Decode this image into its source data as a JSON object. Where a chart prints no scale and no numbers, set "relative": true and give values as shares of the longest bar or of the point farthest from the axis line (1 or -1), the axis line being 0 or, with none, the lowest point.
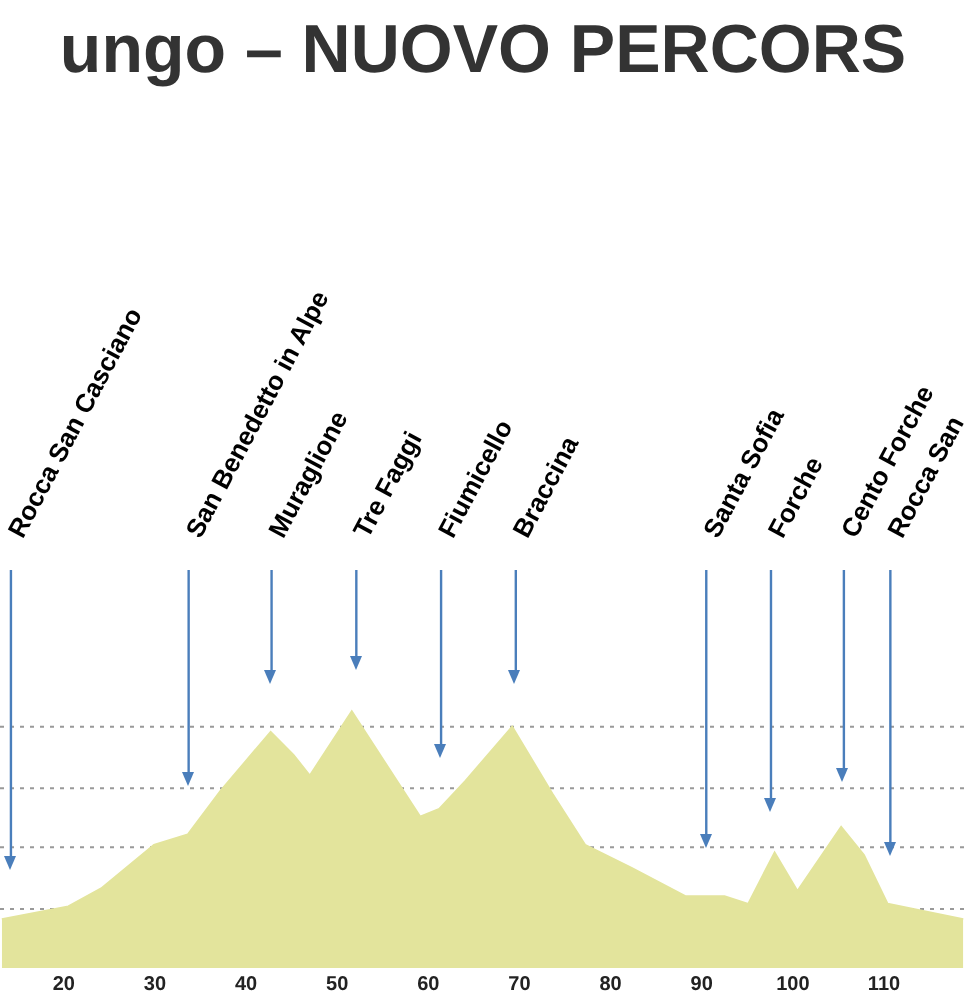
{
  "chart_data": {
    "type": "area",
    "title": "ungo – NUOVO PERCORS",
    "relative": true,
    "color": "#e3e49c",
    "x": [
      13.2,
      20.5,
      24.1,
      29.9,
      33.6,
      37.2,
      42.7,
      45.2,
      47.0,
      51.6,
      59.1,
      61.2,
      64.1,
      69.2,
      73.6,
      77.2,
      82.3,
      88.2,
      92.5,
      95.1,
      98.0,
      100.5,
      105.3,
      107.8,
      110.4,
      118.7
    ],
    "values": [
      0.19,
      0.24,
      0.31,
      0.48,
      0.52,
      0.69,
      0.92,
      0.83,
      0.75,
      1.0,
      0.59,
      0.62,
      0.73,
      0.94,
      0.68,
      0.48,
      0.39,
      0.28,
      0.28,
      0.25,
      0.45,
      0.3,
      0.55,
      0.44,
      0.25,
      0.19
    ],
    "xlim": [
      13,
      119
    ],
    "xticks": [
      20,
      30,
      40,
      50,
      60,
      70,
      80,
      90,
      100,
      110
    ],
    "ref_lines": [
      {
        "axis": "y",
        "value": 0.23,
        "color": "#999999",
        "line_style": "dotted"
      },
      {
        "axis": "y",
        "value": 0.47,
        "color": "#999999",
        "line_style": "dotted"
      },
      {
        "axis": "y",
        "value": 0.7,
        "color": "#999999",
        "line_style": "dotted"
      },
      {
        "axis": "y",
        "value": 0.94,
        "color": "#999999",
        "line_style": "dotted"
      },
      {
        "axis": "x",
        "value": 14.2,
        "label": "Rocca San Casciano",
        "color": "#4a7ebb"
      },
      {
        "axis": "x",
        "value": 33.7,
        "label": "San Benedetto in Alpe",
        "color": "#4a7ebb"
      },
      {
        "axis": "x",
        "value": 42.8,
        "label": "Muraglione",
        "color": "#4a7ebb"
      },
      {
        "axis": "x",
        "value": 52.1,
        "label": "Tre Faggi",
        "color": "#4a7ebb"
      },
      {
        "axis": "x",
        "value": 61.4,
        "label": "Fiumicello",
        "color": "#4a7ebb"
      },
      {
        "axis": "x",
        "value": 69.6,
        "label": "Braccina",
        "color": "#4a7ebb"
      },
      {
        "axis": "x",
        "value": 90.5,
        "label": "Santa Sofia",
        "color": "#4a7ebb"
      },
      {
        "axis": "x",
        "value": 97.6,
        "label": "Forche",
        "color": "#4a7ebb"
      },
      {
        "axis": "x",
        "value": 105.6,
        "label": "Cento Forche",
        "color": "#4a7ebb"
      },
      {
        "axis": "x",
        "value": 110.7,
        "label": "Rocca San",
        "color": "#4a7ebb"
      }
    ]
  }
}
